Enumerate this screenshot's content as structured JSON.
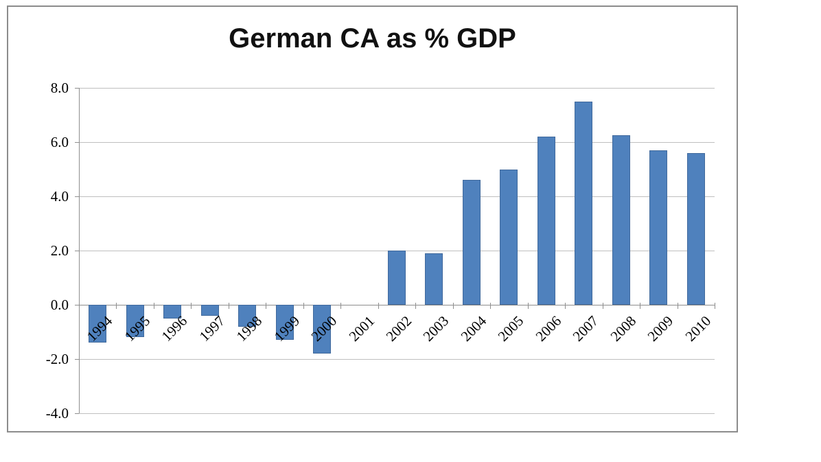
{
  "chart_data": {
    "type": "bar",
    "title": "German CA as % GDP",
    "categories": [
      "1994",
      "1995",
      "1996",
      "1997",
      "1998",
      "1999",
      "2000",
      "2001",
      "2002",
      "2003",
      "2004",
      "2005",
      "2006",
      "2007",
      "2008",
      "2009",
      "2010"
    ],
    "values": [
      -1.4,
      -1.2,
      -0.5,
      -0.4,
      -0.8,
      -1.3,
      -1.8,
      0.0,
      2.0,
      1.9,
      4.6,
      5.0,
      6.2,
      7.5,
      6.25,
      5.7,
      5.6
    ],
    "xlabel": "",
    "ylabel": "",
    "ylim": [
      -4.0,
      8.0
    ],
    "yticks": [
      8.0,
      6.0,
      4.0,
      2.0,
      0.0,
      -2.0,
      -4.0
    ],
    "ytick_labels": [
      "8.0",
      "6.0",
      "4.0",
      "2.0",
      "0.0",
      "-2.0",
      "-4.0"
    ],
    "grid": true,
    "legend": false,
    "colors": {
      "bar_fill": "#4F81BD",
      "bar_border": "#40699C",
      "gridline": "#BFBFBF",
      "axis": "#8E8E8E",
      "frame_border": "#8C8C8C",
      "title_text": "#111111",
      "tick_text": "#000000"
    }
  }
}
